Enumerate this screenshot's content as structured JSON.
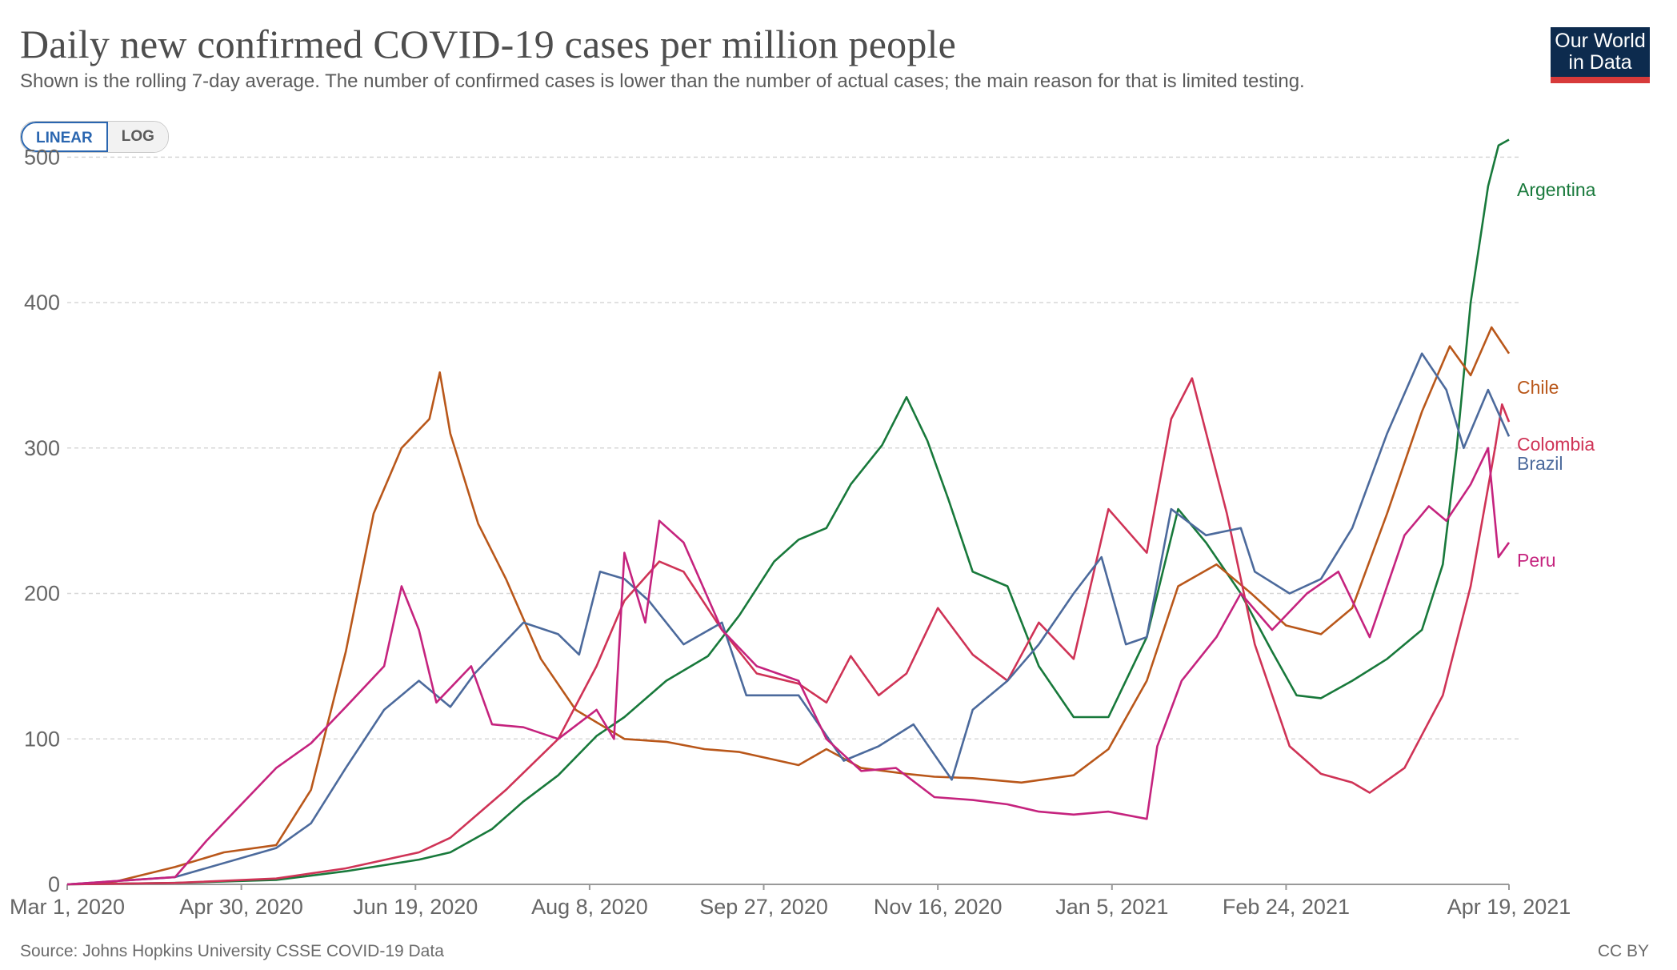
{
  "header": {
    "title": "Daily new confirmed COVID-19 cases per million people",
    "subtitle": "Shown is the rolling 7-day average. The number of confirmed cases is lower than the number of actual cases; the main reason for that is limited testing.",
    "logo_line1": "Our World",
    "logo_line2": "in Data"
  },
  "controls": {
    "linear_label": "LINEAR",
    "log_label": "LOG",
    "selected": "LINEAR"
  },
  "footer": {
    "source": "Source: Johns Hopkins University CSSE COVID-19 Data",
    "license": "CC BY"
  },
  "colors": {
    "Argentina": "#18793b",
    "Chile": "#b9571a",
    "Colombia": "#cf3356",
    "Brazil": "#4c6a9c",
    "Peru": "#c5237e",
    "grid": "#d7d7d7",
    "axis": "#999999"
  },
  "chart_data": {
    "type": "line",
    "title": "Daily new confirmed COVID-19 cases per million people",
    "subtitle": "Shown is the rolling 7-day average. The number of confirmed cases is lower than the number of actual cases; the main reason for that is limited testing.",
    "scale": "linear",
    "ylim": [
      0,
      520
    ],
    "y_ticks": [
      0,
      100,
      200,
      300,
      400,
      500
    ],
    "x_start": "2020-03-01",
    "x_end": "2021-04-19",
    "x_ticks": [
      "Mar 1, 2020",
      "Apr 30, 2020",
      "Jun 19, 2020",
      "Aug 8, 2020",
      "Sep 27, 2020",
      "Nov 16, 2020",
      "Jan 5, 2021",
      "Feb 24, 2021",
      "Apr 19, 2021"
    ],
    "grid": "horizontal dashed",
    "legend": "right-side end labels",
    "series": [
      {
        "name": "Argentina",
        "points": [
          [
            "2020-03-01",
            0
          ],
          [
            "2020-04-01",
            1
          ],
          [
            "2020-04-30",
            3
          ],
          [
            "2020-05-20",
            9
          ],
          [
            "2020-06-10",
            17
          ],
          [
            "2020-06-19",
            22
          ],
          [
            "2020-07-01",
            38
          ],
          [
            "2020-07-10",
            57
          ],
          [
            "2020-07-20",
            75
          ],
          [
            "2020-07-31",
            102
          ],
          [
            "2020-08-08",
            115
          ],
          [
            "2020-08-20",
            140
          ],
          [
            "2020-09-01",
            157
          ],
          [
            "2020-09-10",
            185
          ],
          [
            "2020-09-20",
            222
          ],
          [
            "2020-09-27",
            237
          ],
          [
            "2020-10-05",
            245
          ],
          [
            "2020-10-12",
            275
          ],
          [
            "2020-10-21",
            302
          ],
          [
            "2020-10-28",
            335
          ],
          [
            "2020-11-03",
            305
          ],
          [
            "2020-11-09",
            265
          ],
          [
            "2020-11-16",
            215
          ],
          [
            "2020-11-26",
            205
          ],
          [
            "2020-12-05",
            150
          ],
          [
            "2020-12-15",
            115
          ],
          [
            "2020-12-25",
            115
          ],
          [
            "2021-01-05",
            170
          ],
          [
            "2021-01-14",
            258
          ],
          [
            "2021-01-22",
            235
          ],
          [
            "2021-02-01",
            200
          ],
          [
            "2021-02-10",
            160
          ],
          [
            "2021-02-17",
            130
          ],
          [
            "2021-02-24",
            128
          ],
          [
            "2021-03-05",
            140
          ],
          [
            "2021-03-15",
            155
          ],
          [
            "2021-03-25",
            175
          ],
          [
            "2021-03-31",
            220
          ],
          [
            "2021-04-04",
            300
          ],
          [
            "2021-04-08",
            400
          ],
          [
            "2021-04-13",
            480
          ],
          [
            "2021-04-16",
            508
          ],
          [
            "2021-04-19",
            512
          ]
        ]
      },
      {
        "name": "Chile",
        "points": [
          [
            "2020-03-01",
            0
          ],
          [
            "2020-03-15",
            2
          ],
          [
            "2020-04-01",
            12
          ],
          [
            "2020-04-15",
            22
          ],
          [
            "2020-04-30",
            27
          ],
          [
            "2020-05-10",
            65
          ],
          [
            "2020-05-20",
            160
          ],
          [
            "2020-05-28",
            255
          ],
          [
            "2020-06-05",
            300
          ],
          [
            "2020-06-13",
            320
          ],
          [
            "2020-06-16",
            352
          ],
          [
            "2020-06-19",
            310
          ],
          [
            "2020-06-27",
            248
          ],
          [
            "2020-07-05",
            210
          ],
          [
            "2020-07-15",
            155
          ],
          [
            "2020-07-25",
            120
          ],
          [
            "2020-08-08",
            100
          ],
          [
            "2020-08-20",
            98
          ],
          [
            "2020-08-31",
            93
          ],
          [
            "2020-09-10",
            91
          ],
          [
            "2020-09-27",
            82
          ],
          [
            "2020-10-05",
            93
          ],
          [
            "2020-10-15",
            80
          ],
          [
            "2020-10-28",
            76
          ],
          [
            "2020-11-05",
            74
          ],
          [
            "2020-11-16",
            73
          ],
          [
            "2020-11-30",
            70
          ],
          [
            "2020-12-15",
            75
          ],
          [
            "2020-12-25",
            93
          ],
          [
            "2021-01-05",
            140
          ],
          [
            "2021-01-14",
            205
          ],
          [
            "2021-01-25",
            220
          ],
          [
            "2021-02-04",
            200
          ],
          [
            "2021-02-14",
            178
          ],
          [
            "2021-02-24",
            172
          ],
          [
            "2021-03-05",
            190
          ],
          [
            "2021-03-15",
            255
          ],
          [
            "2021-03-25",
            325
          ],
          [
            "2021-04-02",
            370
          ],
          [
            "2021-04-08",
            350
          ],
          [
            "2021-04-14",
            383
          ],
          [
            "2021-04-19",
            365
          ]
        ]
      },
      {
        "name": "Colombia",
        "points": [
          [
            "2020-03-01",
            0
          ],
          [
            "2020-04-01",
            1
          ],
          [
            "2020-04-30",
            4
          ],
          [
            "2020-05-20",
            11
          ],
          [
            "2020-06-10",
            22
          ],
          [
            "2020-06-19",
            32
          ],
          [
            "2020-07-05",
            65
          ],
          [
            "2020-07-20",
            100
          ],
          [
            "2020-07-31",
            150
          ],
          [
            "2020-08-08",
            195
          ],
          [
            "2020-08-18",
            222
          ],
          [
            "2020-08-25",
            215
          ],
          [
            "2020-09-05",
            175
          ],
          [
            "2020-09-15",
            145
          ],
          [
            "2020-09-27",
            138
          ],
          [
            "2020-10-05",
            125
          ],
          [
            "2020-10-12",
            157
          ],
          [
            "2020-10-20",
            130
          ],
          [
            "2020-10-28",
            145
          ],
          [
            "2020-11-06",
            190
          ],
          [
            "2020-11-16",
            158
          ],
          [
            "2020-11-26",
            140
          ],
          [
            "2020-12-05",
            180
          ],
          [
            "2020-12-15",
            155
          ],
          [
            "2020-12-25",
            258
          ],
          [
            "2021-01-05",
            228
          ],
          [
            "2021-01-12",
            320
          ],
          [
            "2021-01-18",
            348
          ],
          [
            "2021-01-28",
            255
          ],
          [
            "2021-02-05",
            165
          ],
          [
            "2021-02-15",
            95
          ],
          [
            "2021-02-24",
            76
          ],
          [
            "2021-03-05",
            70
          ],
          [
            "2021-03-10",
            63
          ],
          [
            "2021-03-20",
            80
          ],
          [
            "2021-03-31",
            130
          ],
          [
            "2021-04-08",
            205
          ],
          [
            "2021-04-15",
            300
          ],
          [
            "2021-04-17",
            330
          ],
          [
            "2021-04-19",
            318
          ]
        ]
      },
      {
        "name": "Brazil",
        "points": [
          [
            "2020-03-01",
            0
          ],
          [
            "2020-04-01",
            5
          ],
          [
            "2020-04-30",
            25
          ],
          [
            "2020-05-10",
            42
          ],
          [
            "2020-05-20",
            80
          ],
          [
            "2020-05-31",
            120
          ],
          [
            "2020-06-10",
            140
          ],
          [
            "2020-06-19",
            122
          ],
          [
            "2020-06-26",
            145
          ],
          [
            "2020-07-10",
            180
          ],
          [
            "2020-07-20",
            172
          ],
          [
            "2020-07-26",
            158
          ],
          [
            "2020-08-01",
            215
          ],
          [
            "2020-08-08",
            210
          ],
          [
            "2020-08-15",
            195
          ],
          [
            "2020-08-25",
            165
          ],
          [
            "2020-09-05",
            180
          ],
          [
            "2020-09-12",
            130
          ],
          [
            "2020-09-27",
            130
          ],
          [
            "2020-10-10",
            85
          ],
          [
            "2020-10-20",
            95
          ],
          [
            "2020-10-30",
            110
          ],
          [
            "2020-11-10",
            72
          ],
          [
            "2020-11-16",
            120
          ],
          [
            "2020-11-26",
            140
          ],
          [
            "2020-12-05",
            165
          ],
          [
            "2020-12-15",
            200
          ],
          [
            "2020-12-23",
            225
          ],
          [
            "2020-12-30",
            165
          ],
          [
            "2021-01-05",
            170
          ],
          [
            "2021-01-12",
            258
          ],
          [
            "2021-01-22",
            240
          ],
          [
            "2021-02-01",
            245
          ],
          [
            "2021-02-05",
            215
          ],
          [
            "2021-02-15",
            200
          ],
          [
            "2021-02-24",
            210
          ],
          [
            "2021-03-05",
            245
          ],
          [
            "2021-03-15",
            310
          ],
          [
            "2021-03-25",
            365
          ],
          [
            "2021-04-01",
            340
          ],
          [
            "2021-04-06",
            300
          ],
          [
            "2021-04-13",
            340
          ],
          [
            "2021-04-19",
            308
          ]
        ]
      },
      {
        "name": "Peru",
        "points": [
          [
            "2020-03-01",
            0
          ],
          [
            "2020-04-01",
            5
          ],
          [
            "2020-04-10",
            30
          ],
          [
            "2020-04-30",
            80
          ],
          [
            "2020-05-10",
            97
          ],
          [
            "2020-05-20",
            122
          ],
          [
            "2020-05-31",
            150
          ],
          [
            "2020-06-05",
            205
          ],
          [
            "2020-06-10",
            175
          ],
          [
            "2020-06-15",
            125
          ],
          [
            "2020-06-19",
            135
          ],
          [
            "2020-06-25",
            150
          ],
          [
            "2020-07-01",
            110
          ],
          [
            "2020-07-10",
            108
          ],
          [
            "2020-07-20",
            100
          ],
          [
            "2020-07-31",
            120
          ],
          [
            "2020-08-05",
            100
          ],
          [
            "2020-08-08",
            228
          ],
          [
            "2020-08-14",
            180
          ],
          [
            "2020-08-18",
            250
          ],
          [
            "2020-08-25",
            235
          ],
          [
            "2020-09-05",
            175
          ],
          [
            "2020-09-15",
            150
          ],
          [
            "2020-09-27",
            140
          ],
          [
            "2020-10-05",
            100
          ],
          [
            "2020-10-15",
            78
          ],
          [
            "2020-10-25",
            80
          ],
          [
            "2020-11-05",
            60
          ],
          [
            "2020-11-16",
            58
          ],
          [
            "2020-11-26",
            55
          ],
          [
            "2020-12-05",
            50
          ],
          [
            "2020-12-15",
            48
          ],
          [
            "2020-12-25",
            50
          ],
          [
            "2021-01-05",
            45
          ],
          [
            "2021-01-08",
            95
          ],
          [
            "2021-01-15",
            140
          ],
          [
            "2021-01-25",
            170
          ],
          [
            "2021-02-01",
            200
          ],
          [
            "2021-02-10",
            175
          ],
          [
            "2021-02-20",
            200
          ],
          [
            "2021-03-01",
            215
          ],
          [
            "2021-03-10",
            170
          ],
          [
            "2021-03-20",
            240
          ],
          [
            "2021-03-27",
            260
          ],
          [
            "2021-04-01",
            250
          ],
          [
            "2021-04-08",
            275
          ],
          [
            "2021-04-13",
            300
          ],
          [
            "2021-04-16",
            225
          ],
          [
            "2021-04-19",
            235
          ]
        ]
      }
    ]
  }
}
